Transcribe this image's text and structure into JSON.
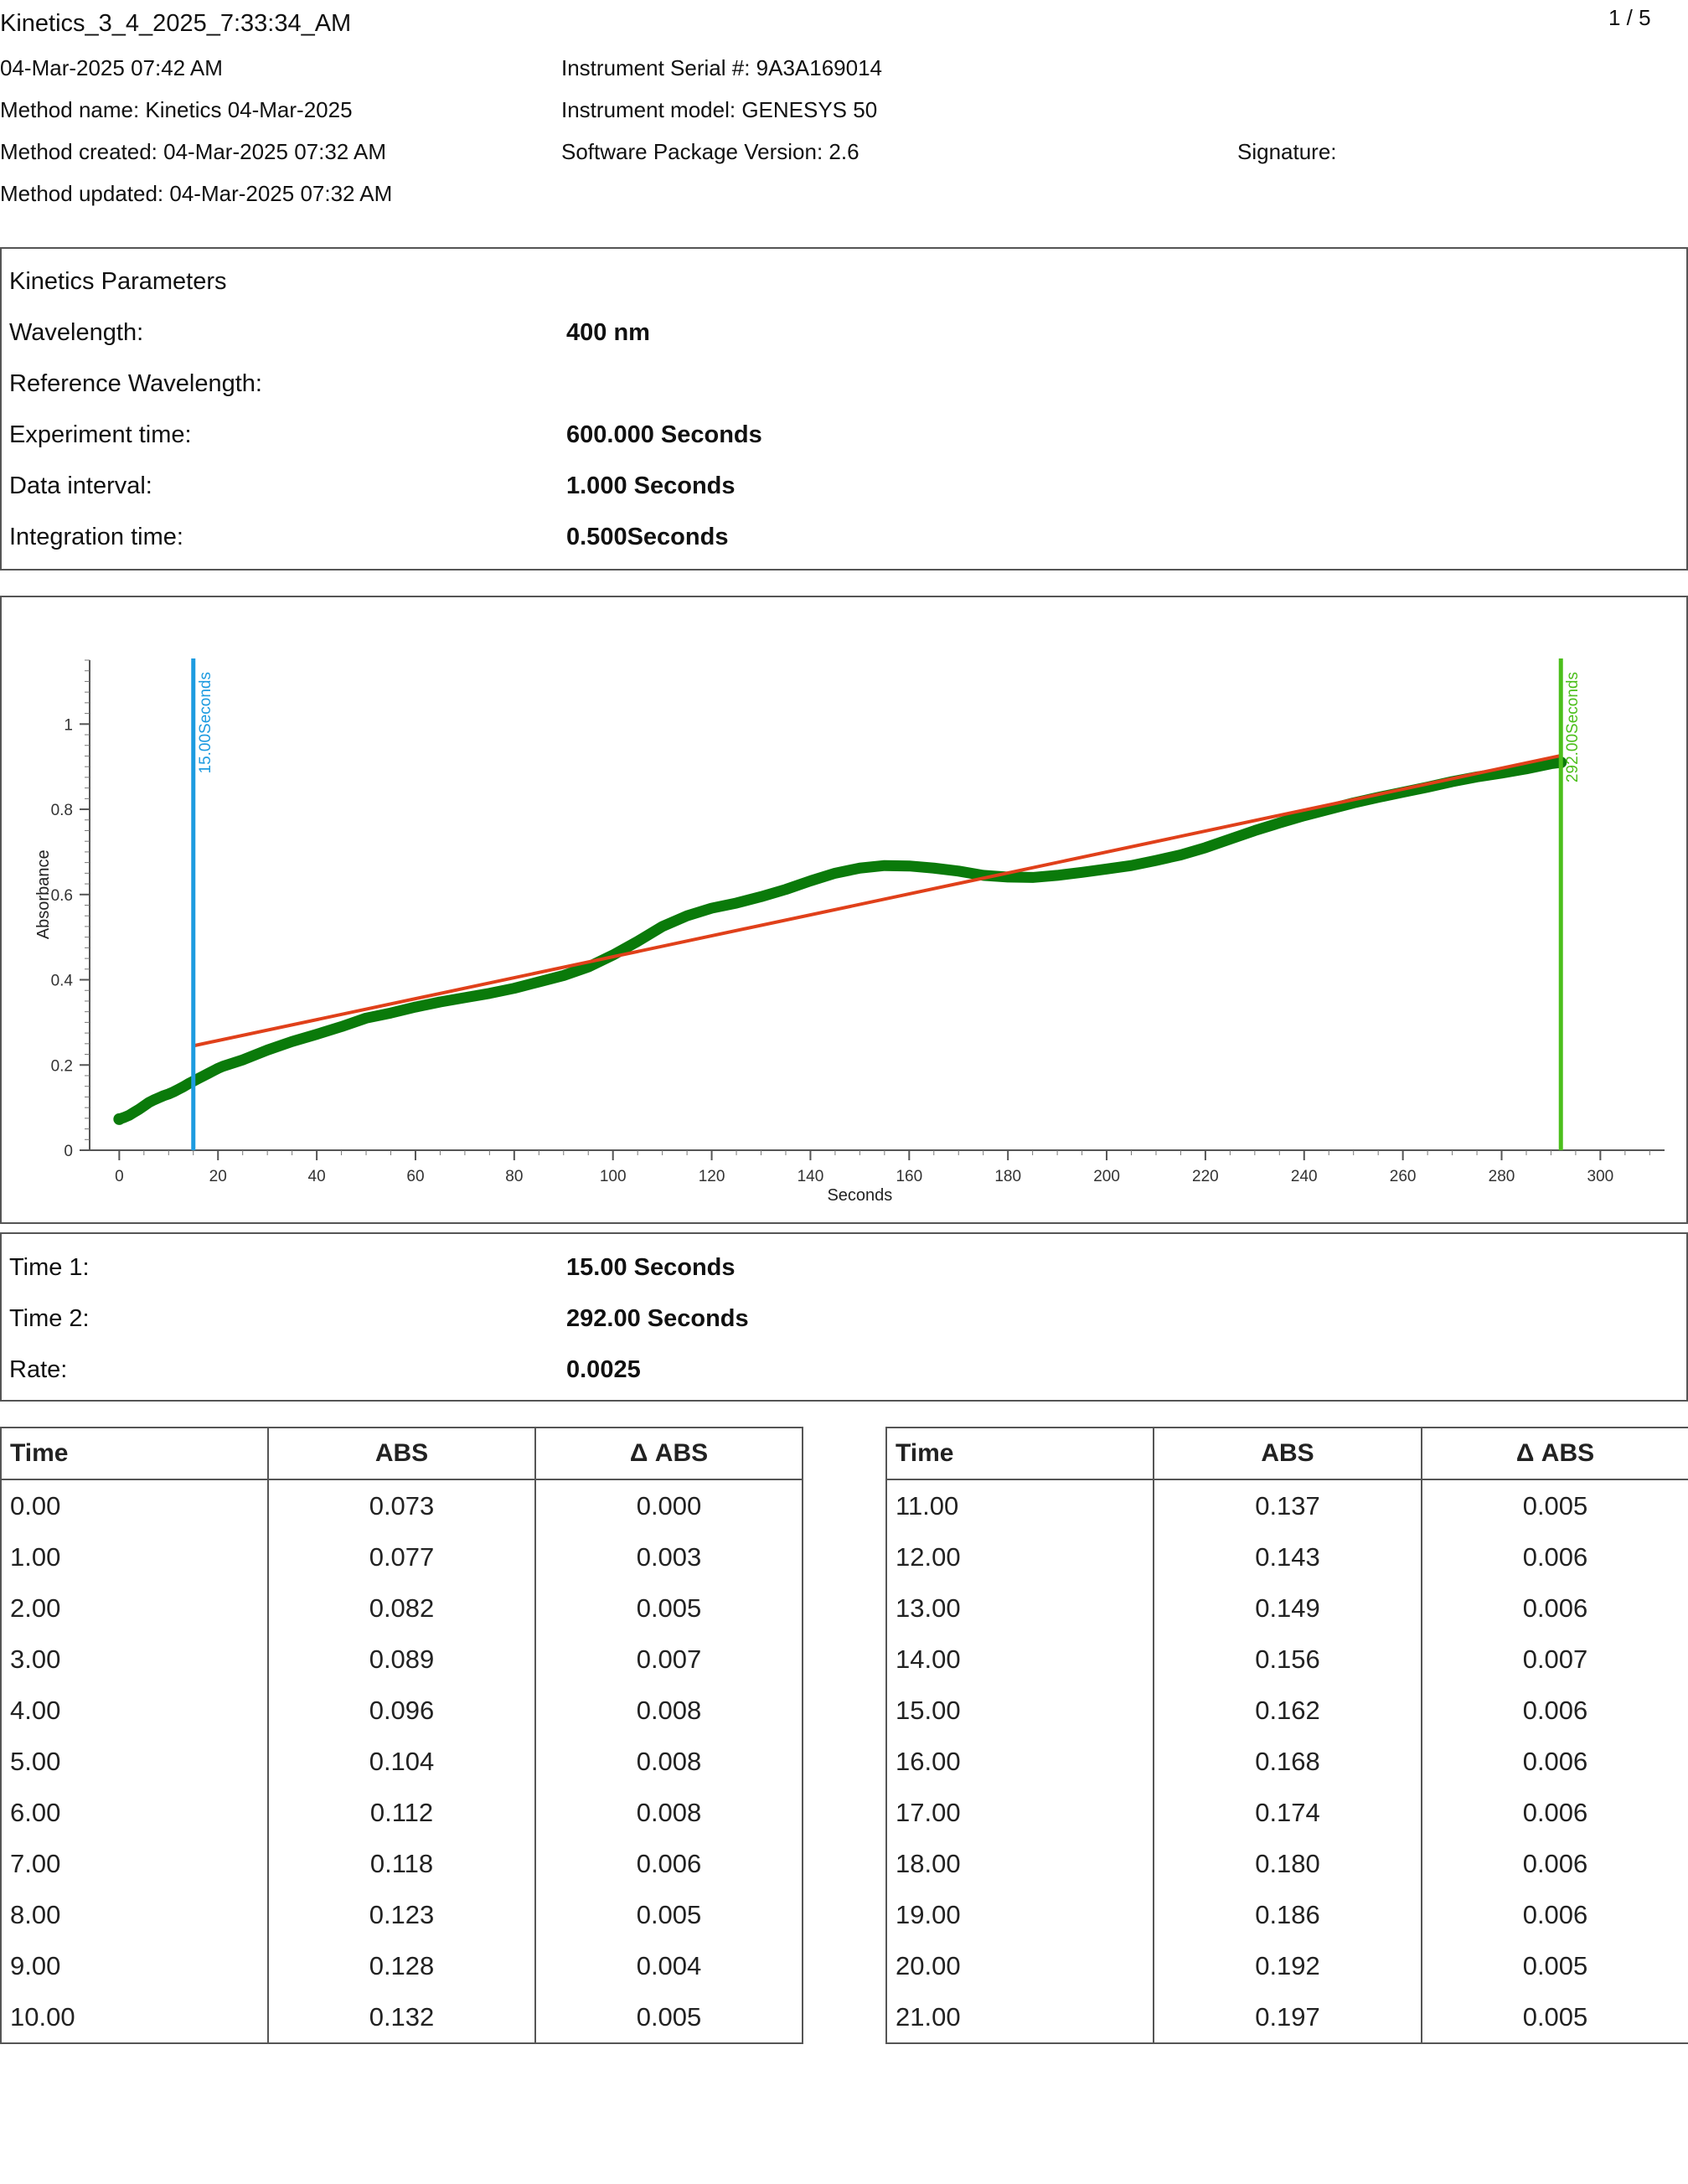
{
  "header": {
    "file_title": "Kinetics_3_4_2025_7:33:34_AM",
    "page_indicator": "1 / 5",
    "date": "04-Mar-2025 07:42 AM",
    "method_name": "Method name: Kinetics 04-Mar-2025",
    "method_created": "Method created: 04-Mar-2025 07:32 AM",
    "method_updated": "Method updated: 04-Mar-2025 07:32 AM",
    "instrument_serial": "Instrument Serial #: 9A3A169014",
    "instrument_model": "Instrument model: GENESYS 50",
    "software_version": "Software Package Version: 2.6",
    "signature_label": "Signature:"
  },
  "parameters": {
    "title": "Kinetics Parameters",
    "rows": [
      {
        "label": "Wavelength:",
        "value": "400 nm"
      },
      {
        "label": "Reference Wavelength:",
        "value": ""
      },
      {
        "label": "Experiment time:",
        "value": "600.000 Seconds"
      },
      {
        "label": "Data interval:",
        "value": "1.000 Seconds"
      },
      {
        "label": "Integration time:",
        "value": "0.500Seconds"
      }
    ]
  },
  "chart_data": {
    "type": "line",
    "title": "",
    "xlabel": "Seconds",
    "ylabel": "Absorbance",
    "xlim": [
      -6,
      313
    ],
    "ylim": [
      0,
      1.15
    ],
    "x_ticks": [
      0,
      20,
      40,
      60,
      80,
      100,
      120,
      140,
      160,
      180,
      200,
      220,
      240,
      260,
      280,
      300
    ],
    "y_ticks": [
      0,
      0.2,
      0.4,
      0.6,
      0.8,
      1
    ],
    "y_tick_labels": [
      "0",
      "0.2",
      "0.4",
      "0.6",
      "0.8",
      "1"
    ],
    "grid": false,
    "colors": {
      "data": "#0a7a0a",
      "fit": "#e0401a",
      "marker1": "#1e9be0",
      "marker2": "#4cbf1c"
    },
    "series": [
      {
        "x": [
          0,
          1,
          2,
          3,
          4,
          5,
          6,
          7,
          8,
          9,
          10,
          11,
          12,
          13,
          14,
          15,
          16,
          17,
          18,
          19,
          20,
          21,
          25,
          30,
          35,
          40,
          45,
          50,
          55,
          60,
          65,
          70,
          75,
          80,
          85,
          90,
          95,
          100,
          105,
          110,
          115,
          120,
          125,
          130,
          135,
          140,
          145,
          150,
          155,
          160,
          165,
          170,
          175,
          180,
          185,
          190,
          195,
          200,
          205,
          210,
          215,
          220,
          225,
          230,
          235,
          240,
          245,
          250,
          255,
          260,
          265,
          270,
          275,
          280,
          285,
          290,
          292
        ],
        "values": [
          0.073,
          0.077,
          0.082,
          0.089,
          0.096,
          0.104,
          0.112,
          0.118,
          0.123,
          0.128,
          0.132,
          0.137,
          0.143,
          0.149,
          0.156,
          0.162,
          0.168,
          0.174,
          0.18,
          0.186,
          0.192,
          0.197,
          0.212,
          0.235,
          0.255,
          0.272,
          0.29,
          0.31,
          0.322,
          0.336,
          0.348,
          0.358,
          0.368,
          0.38,
          0.395,
          0.41,
          0.43,
          0.458,
          0.49,
          0.525,
          0.55,
          0.568,
          0.58,
          0.595,
          0.612,
          0.632,
          0.65,
          0.662,
          0.668,
          0.667,
          0.662,
          0.655,
          0.645,
          0.641,
          0.64,
          0.645,
          0.652,
          0.66,
          0.668,
          0.68,
          0.693,
          0.71,
          0.73,
          0.75,
          0.768,
          0.785,
          0.8,
          0.815,
          0.828,
          0.84,
          0.852,
          0.865,
          0.876,
          0.885,
          0.895,
          0.907,
          0.91
        ]
      }
    ],
    "fit_line": {
      "x": [
        15,
        292
      ],
      "y": [
        0.245,
        0.926
      ]
    },
    "markers": [
      {
        "x": 15,
        "label": "15.00Seconds"
      },
      {
        "x": 292,
        "label": "292.00Seconds"
      }
    ]
  },
  "results": {
    "rows": [
      {
        "label": "Time 1:",
        "value": "15.00 Seconds"
      },
      {
        "label": "Time 2:",
        "value": "292.00 Seconds"
      },
      {
        "label": "Rate:",
        "value": "0.0025"
      }
    ]
  },
  "table_headers": {
    "time": "Time",
    "abs": "ABS",
    "dabs": "Δ ABS"
  },
  "table_left": [
    [
      "0.00",
      "0.073",
      "0.000"
    ],
    [
      "1.00",
      "0.077",
      "0.003"
    ],
    [
      "2.00",
      "0.082",
      "0.005"
    ],
    [
      "3.00",
      "0.089",
      "0.007"
    ],
    [
      "4.00",
      "0.096",
      "0.008"
    ],
    [
      "5.00",
      "0.104",
      "0.008"
    ],
    [
      "6.00",
      "0.112",
      "0.008"
    ],
    [
      "7.00",
      "0.118",
      "0.006"
    ],
    [
      "8.00",
      "0.123",
      "0.005"
    ],
    [
      "9.00",
      "0.128",
      "0.004"
    ],
    [
      "10.00",
      "0.132",
      "0.005"
    ]
  ],
  "table_right": [
    [
      "11.00",
      "0.137",
      "0.005"
    ],
    [
      "12.00",
      "0.143",
      "0.006"
    ],
    [
      "13.00",
      "0.149",
      "0.006"
    ],
    [
      "14.00",
      "0.156",
      "0.007"
    ],
    [
      "15.00",
      "0.162",
      "0.006"
    ],
    [
      "16.00",
      "0.168",
      "0.006"
    ],
    [
      "17.00",
      "0.174",
      "0.006"
    ],
    [
      "18.00",
      "0.180",
      "0.006"
    ],
    [
      "19.00",
      "0.186",
      "0.006"
    ],
    [
      "20.00",
      "0.192",
      "0.005"
    ],
    [
      "21.00",
      "0.197",
      "0.005"
    ]
  ]
}
